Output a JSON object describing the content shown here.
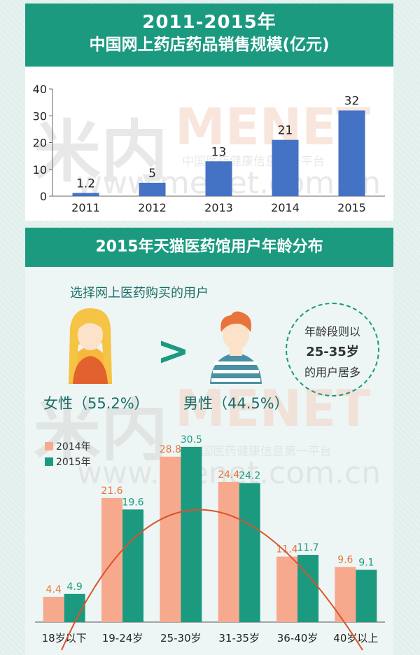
{
  "header": {
    "title_line1": "2011-2015年",
    "title_line2": "中国网上药店药品销售规模(亿元)"
  },
  "section2": {
    "title": "2015年天猫医药馆用户年龄分布",
    "question": "选择网上医药购买的用户",
    "female_label": "女性（55.2%）",
    "male_label": "男性（44.5%）",
    "comparison_symbol": ">",
    "bubble": {
      "line1": "年龄段则以",
      "line2": "25-35岁",
      "line3": "的用户居多"
    }
  },
  "watermark": {
    "brand": "米内",
    "brand_en": "MENET",
    "slogan": "中国医药健康信息第一平台",
    "url": "www.menet.com.cn"
  },
  "colors": {
    "teal": "#1b9a80",
    "blue": "#4472c4",
    "salmon": "#f7a98e",
    "orange_line": "#e05a2a"
  },
  "icons": {
    "female": "woman-avatar-icon",
    "male": "man-avatar-icon"
  },
  "chart_data": [
    {
      "type": "bar",
      "categories": [
        "2011",
        "2012",
        "2013",
        "2014",
        "2015"
      ],
      "values": [
        1.2,
        5,
        13,
        21,
        32
      ],
      "value_labels": [
        "1.2",
        "5",
        "13",
        "21",
        "32"
      ],
      "ylim": [
        0,
        40
      ],
      "yticks": [
        0,
        10,
        20,
        30,
        40
      ],
      "grid": false
    },
    {
      "type": "bar",
      "categories": [
        "18岁以下",
        "19-24岁",
        "25-30岁",
        "31-35岁",
        "36-40岁",
        "40岁以上"
      ],
      "series": [
        {
          "name": "2014年",
          "values": [
            4.4,
            21.6,
            28.8,
            24.4,
            11.4,
            9.6
          ],
          "labels": [
            "4.4",
            "21.6",
            "28.8",
            "24.4",
            "11.4",
            "9.6"
          ]
        },
        {
          "name": "2015年",
          "values": [
            4.9,
            19.6,
            30.5,
            24.2,
            11.7,
            9.1
          ],
          "labels": [
            "4.9",
            "19.6",
            "30.5",
            "24.2",
            "11.7",
            "9.1"
          ]
        }
      ],
      "legend": "top-left",
      "trend_curve": true
    }
  ]
}
